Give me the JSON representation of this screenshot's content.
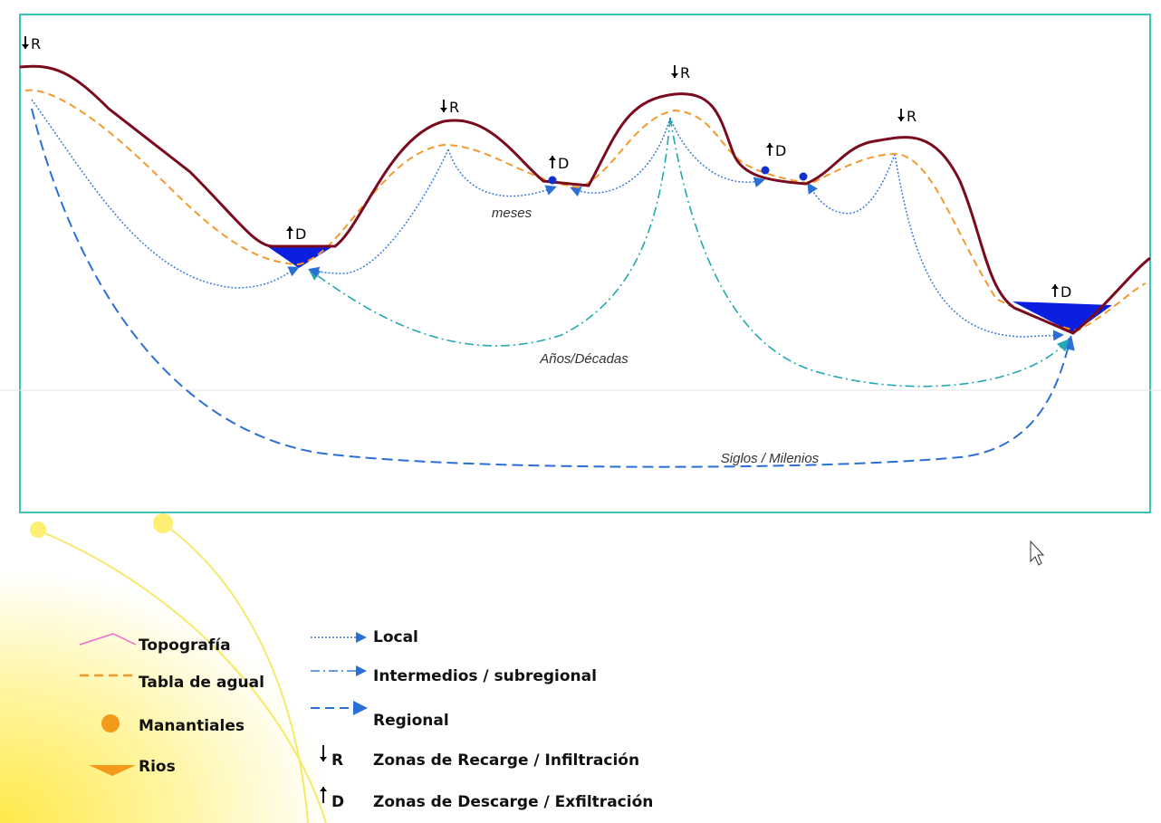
{
  "zone_labels": [
    "R",
    "R",
    "R",
    "R",
    "D",
    "D",
    "D",
    "D"
  ],
  "flow_labels": [
    "meses",
    "Años/Décadas",
    "Siglos / Milenios"
  ],
  "legend": {
    "features": [
      "Topografía",
      "Tabla de agual",
      "Manantiales",
      "Rios"
    ],
    "flows": [
      "Local",
      "Intermedios / subregional",
      "Regional"
    ],
    "zones": [
      {
        "symbol": "R",
        "label": "Zonas de Recarge / Infiltración"
      },
      {
        "symbol": "D",
        "label": "Zonas de Descarge / Exfiltración"
      }
    ]
  }
}
